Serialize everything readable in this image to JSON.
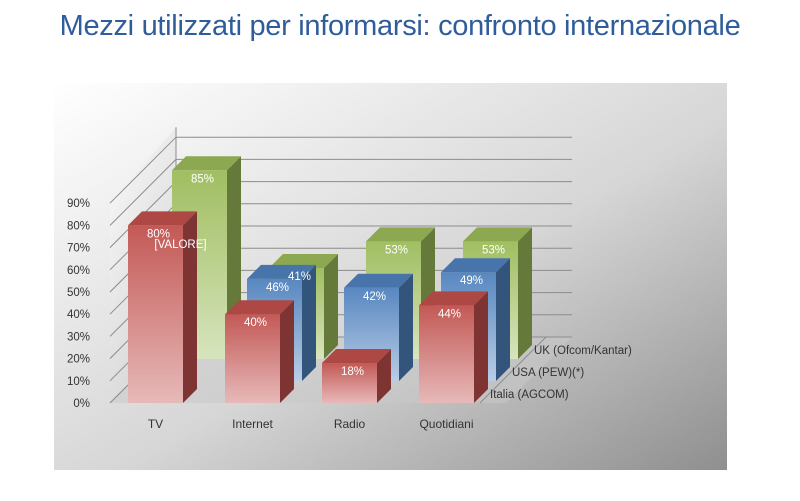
{
  "page": {
    "title": "Mezzi utilizzati per informarsi: confronto internazionale"
  },
  "chart_data": {
    "type": "bar",
    "subtype": "3d-clustered-depth",
    "categories": [
      "TV",
      "Internet",
      "Radio",
      "Quotidiani"
    ],
    "series": [
      {
        "name": "Italia (AGCOM)",
        "values": [
          80,
          40,
          18,
          44
        ],
        "labels": [
          "80%",
          "40%",
          "18%",
          "44%"
        ],
        "color": "#c0504d"
      },
      {
        "name": "USA (PEW)(*)",
        "values": [
          null,
          46,
          42,
          49
        ],
        "labels": [
          "[VALORE]",
          "46%",
          "42%",
          "49%"
        ],
        "color": "#4f81bd"
      },
      {
        "name": "UK (Ofcom/Kantar)",
        "values": [
          85,
          41,
          53,
          53
        ],
        "labels": [
          "85%",
          "41%",
          "53%",
          "53%"
        ],
        "color": "#9bbb59"
      }
    ],
    "y_ticks": [
      "0%",
      "10%",
      "20%",
      "30%",
      "40%",
      "50%",
      "60%",
      "70%",
      "80%",
      "90%"
    ],
    "ylim": [
      0,
      90
    ],
    "grid": true,
    "legend": "right-depth-axis",
    "background": "gray-gradient"
  }
}
